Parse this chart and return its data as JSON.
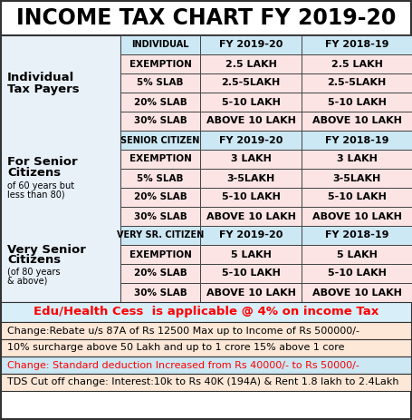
{
  "title": "INCOME TAX CHART FY 2019-20",
  "title_fontsize": 17,
  "section1": {
    "col1": "INDIVIDUAL",
    "col2": "FY 2019-20",
    "col3": "FY 2018-19",
    "rows": [
      [
        "EXEMPTION",
        "2.5 LAKH",
        "2.5 LAKH"
      ],
      [
        "5% SLAB",
        "2.5-5LAKH",
        "2.5-5LAKH"
      ],
      [
        "20% SLAB",
        "5-10 LAKH",
        "5-10 LAKH"
      ],
      [
        "30% SLAB",
        "ABOVE 10 LAKH",
        "ABOVE 10 LAKH"
      ]
    ]
  },
  "section2": {
    "col1": "SENIOR CITIZEN",
    "col2": "FY 2019-20",
    "col3": "FY 2018-19",
    "rows": [
      [
        "EXEMPTION",
        "3 LAKH",
        "3 LAKH"
      ],
      [
        "5% SLAB",
        "3-5LAKH",
        "3-5LAKH"
      ],
      [
        "20% SLAB",
        "5-10 LAKH",
        "5-10 LAKH"
      ],
      [
        "30% SLAB",
        "ABOVE 10 LAKH",
        "ABOVE 10 LAKH"
      ]
    ]
  },
  "section3": {
    "col1": "VERY SR. CITIZEN",
    "col2": "FY 2019-20",
    "col3": "FY 2018-19",
    "rows": [
      [
        "EXEMPTION",
        "5 LAKH",
        "5 LAKH"
      ],
      [
        "20% SLAB",
        "5-10 LAKH",
        "5-10 LAKH"
      ],
      [
        "30% SLAB",
        "ABOVE 10 LAKH",
        "ABOVE 10 LAKH"
      ]
    ]
  },
  "header_bg": "#cce8f4",
  "row_bg_odd": "#fce4e4",
  "row_bg_even": "#fce4e4",
  "left_bg": "#e8f0f8",
  "outer_bg": "#ffffff",
  "bottom_notes": [
    {
      "text": "Edu/Health Cess  is applicable @ 4% on income Tax",
      "color": "#ff0000",
      "bg": "#d8eef8",
      "fontsize": 9.5,
      "bold": true,
      "align": "center"
    },
    {
      "text": "Change:Rebate u/s 87A of Rs 12500 Max up to Income of Rs 500000/-",
      "color": "#000000",
      "bg": "#fde8d8",
      "fontsize": 8,
      "bold": false,
      "align": "left"
    },
    {
      "text": "10% surcharge above 50 Lakh and up to 1 crore 15% above 1 core",
      "color": "#000000",
      "bg": "#fde8d8",
      "fontsize": 8,
      "bold": false,
      "align": "left"
    },
    {
      "text": "Change: Standard deduction Increased from Rs 40000/- to Rs 50000/-",
      "color": "#ff0000",
      "bg": "#cce8f4",
      "fontsize": 8,
      "bold": false,
      "align": "left"
    },
    {
      "text": "TDS Cut off change: Interest:10k to Rs 40K (194A) & Rent 1.8 lakh to 2.4Lakh",
      "color": "#000000",
      "bg": "#fde8d8",
      "fontsize": 8,
      "bold": false,
      "align": "left"
    }
  ]
}
